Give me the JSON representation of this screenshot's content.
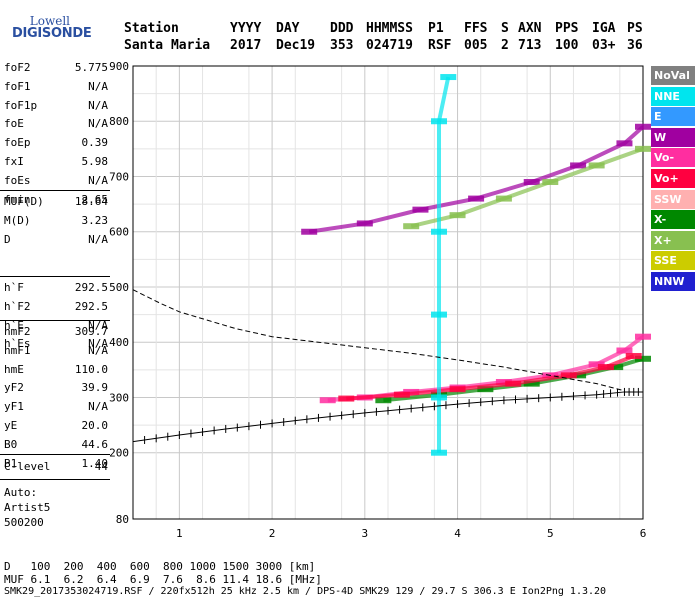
{
  "logo": {
    "line1": "Lowell",
    "line2": "DIGISONDE"
  },
  "header": {
    "labels": [
      "Station",
      "YYYY",
      "DAY",
      "DDD",
      "HHMMSS",
      "P1",
      "FFS",
      "S",
      "AXN",
      "PPS",
      "IGA",
      "PS"
    ],
    "values": [
      "Santa Maria",
      "2017",
      "Dec19",
      "353",
      "024719",
      "RSF",
      "005",
      "2",
      "713",
      "100",
      "03+",
      "36"
    ]
  },
  "params_group1": [
    {
      "name": "foF2",
      "value": "5.775"
    },
    {
      "name": "foF1",
      "value": "N/A"
    },
    {
      "name": "foF1p",
      "value": "N/A"
    },
    {
      "name": "foE",
      "value": "N/A"
    },
    {
      "name": "foEp",
      "value": "0.39"
    },
    {
      "name": "fxI",
      "value": "5.98"
    },
    {
      "name": "foEs",
      "value": "N/A"
    },
    {
      "name": "fmin",
      "value": "2.65"
    }
  ],
  "params_group2": [
    {
      "name": "MUF(D)",
      "value": "18.64"
    },
    {
      "name": "M(D)",
      "value": "3.23"
    },
    {
      "name": "D",
      "value": "N/A"
    }
  ],
  "params_group3": [
    {
      "name": "h`F",
      "value": "292.5"
    },
    {
      "name": "h`F2",
      "value": "292.5"
    },
    {
      "name": "h`E",
      "value": "N/A"
    },
    {
      "name": "h`Es",
      "value": "N/A"
    }
  ],
  "params_group4": [
    {
      "name": "hmF2",
      "value": "309.7"
    },
    {
      "name": "hmF1",
      "value": "N/A"
    },
    {
      "name": "hmE",
      "value": "110.0"
    },
    {
      "name": "yF2",
      "value": "39.9"
    },
    {
      "name": "yF1",
      "value": "N/A"
    },
    {
      "name": "yE",
      "value": "20.0"
    },
    {
      "name": "B0",
      "value": "44.6"
    },
    {
      "name": "B1",
      "value": "1.40"
    }
  ],
  "clevel": {
    "name": "C-level",
    "value": "44"
  },
  "autoscale": {
    "line1": "Auto:",
    "line2": "Artist5",
    "line3": "500200"
  },
  "legend": [
    {
      "label": "NoVal",
      "color": "#808080"
    },
    {
      "label": "NNE",
      "color": "#00e5ee"
    },
    {
      "label": "E",
      "color": "#3399ff"
    },
    {
      "label": "W",
      "color": "#a000a0"
    },
    {
      "label": "Vo-",
      "color": "#ff2ea0"
    },
    {
      "label": "Vo+",
      "color": "#ff0040"
    },
    {
      "label": "SSW",
      "color": "#ffb0b0"
    },
    {
      "label": "X-",
      "color": "#008800"
    },
    {
      "label": "X+",
      "color": "#88c050"
    },
    {
      "label": "SSE",
      "color": "#cccc00"
    },
    {
      "label": "NNW",
      "color": "#2020d0"
    }
  ],
  "footer": {
    "d_label": "D",
    "d_values": "100  200  400  600  800 1000 1500 3000 [km]",
    "muf_label": "MUF",
    "muf_values": "6.1  6.2  6.4  6.9  7.6  8.6 11.4 18.6 [MHz]",
    "file_info": "SMK29_2017353024719.RSF / 220fx512h 25 kHz 2.5 km / DPS-4D SMK29 129 / 29.7 S 306.3 E Ion2Png 1.3.20"
  },
  "chart_data": {
    "type": "scatter",
    "xlim": [
      0.5,
      6.0
    ],
    "ylim": [
      80,
      900
    ],
    "x_ticks": [
      1,
      2,
      3,
      4,
      5,
      6
    ],
    "y_ticks": [
      80,
      200,
      300,
      400,
      500,
      600,
      700,
      800,
      900
    ],
    "grid": true,
    "series": [
      {
        "color": "#ff2ea0",
        "points": [
          [
            2.6,
            295
          ],
          [
            3.0,
            300
          ],
          [
            3.5,
            310
          ],
          [
            4.0,
            318
          ],
          [
            4.5,
            328
          ],
          [
            5.0,
            340
          ],
          [
            5.5,
            360
          ],
          [
            5.8,
            385
          ],
          [
            6.0,
            410
          ]
        ]
      },
      {
        "color": "#008800",
        "points": [
          [
            3.2,
            295
          ],
          [
            3.8,
            305
          ],
          [
            4.3,
            315
          ],
          [
            4.8,
            325
          ],
          [
            5.3,
            340
          ],
          [
            5.7,
            355
          ],
          [
            6.0,
            370
          ]
        ]
      },
      {
        "color": "#ff0040",
        "points": [
          [
            2.8,
            298
          ],
          [
            3.4,
            305
          ],
          [
            4.0,
            315
          ],
          [
            4.6,
            325
          ],
          [
            5.2,
            340
          ],
          [
            5.6,
            355
          ],
          [
            5.9,
            375
          ]
        ]
      },
      {
        "color": "#a000a0",
        "points": [
          [
            2.4,
            600
          ],
          [
            3.0,
            615
          ],
          [
            3.6,
            640
          ],
          [
            4.2,
            660
          ],
          [
            4.8,
            690
          ],
          [
            5.3,
            720
          ],
          [
            5.8,
            760
          ],
          [
            6.0,
            790
          ]
        ]
      },
      {
        "color": "#88c050",
        "points": [
          [
            3.5,
            610
          ],
          [
            4.0,
            630
          ],
          [
            4.5,
            660
          ],
          [
            5.0,
            690
          ],
          [
            5.5,
            720
          ],
          [
            6.0,
            750
          ]
        ]
      },
      {
        "color": "#00e5ee",
        "points": [
          [
            3.8,
            200
          ],
          [
            3.8,
            300
          ],
          [
            3.8,
            450
          ],
          [
            3.8,
            600
          ],
          [
            3.8,
            800
          ],
          [
            3.9,
            880
          ]
        ]
      }
    ],
    "ntrace_line": {
      "points": [
        [
          0.5,
          220
        ],
        [
          1.0,
          232
        ],
        [
          1.5,
          243
        ],
        [
          2.0,
          253
        ],
        [
          2.5,
          263
        ],
        [
          3.0,
          272
        ],
        [
          3.5,
          280
        ],
        [
          4.0,
          288
        ],
        [
          4.5,
          295
        ],
        [
          5.0,
          300
        ],
        [
          5.5,
          305
        ],
        [
          5.8,
          310
        ],
        [
          6.0,
          310
        ]
      ]
    },
    "profile_line": {
      "points": [
        [
          0.5,
          495
        ],
        [
          0.8,
          470
        ],
        [
          1.0,
          455
        ],
        [
          1.3,
          440
        ],
        [
          1.6,
          425
        ],
        [
          2.0,
          410
        ],
        [
          2.5,
          400
        ],
        [
          3.0,
          390
        ],
        [
          3.5,
          380
        ],
        [
          4.0,
          368
        ],
        [
          4.5,
          355
        ],
        [
          5.0,
          340
        ],
        [
          5.5,
          325
        ],
        [
          5.8,
          312
        ]
      ]
    }
  }
}
